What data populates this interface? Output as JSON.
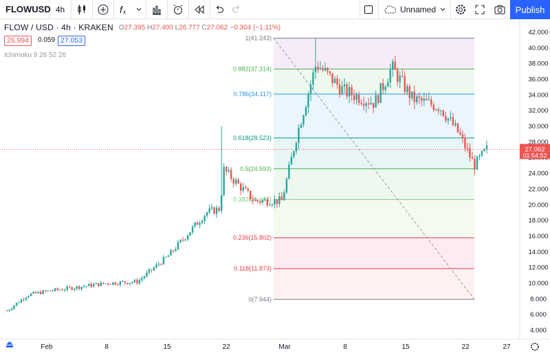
{
  "toolbar": {
    "symbol": "FLOWUSD",
    "interval": "4h",
    "layout_name": "Unnamed",
    "publish_label": "Publish",
    "icons": [
      "candles-icon",
      "add-compare-icon",
      "indicators-icon",
      "chevron-down-icon",
      "templates-icon",
      "alert-icon",
      "replay-icon",
      "undo-icon",
      "redo-icon",
      "square-icon",
      "cloud-icon",
      "settings-icon",
      "fullscreen-icon",
      "camera-icon"
    ]
  },
  "legend": {
    "title": "FLOW / USD · 4h · KRAKEN",
    "o_label": "O",
    "o": "27.395",
    "h_label": "H",
    "h": "27.400",
    "l_label": "L",
    "l": "26.777",
    "c_label": "C",
    "c": "27.062",
    "change": "−0.304 (−1.11%)",
    "sell_price": "26.994",
    "spread": "0.059",
    "buy_price": "27.053",
    "indicator": "Ichimoku 9 26 52 26"
  },
  "price_axis": {
    "ticks": [
      "42.000",
      "40.000",
      "38.000",
      "36.000",
      "34.000",
      "32.000",
      "30.000",
      "28.000",
      "26.000",
      "24.000",
      "22.000",
      "20.000",
      "18.000",
      "16.000",
      "14.000",
      "12.000",
      "10.000",
      "8.000",
      "6.000",
      "4.000"
    ],
    "last_price": "27.062",
    "countdown": "01:54:52",
    "last_price_color": "#ef5350"
  },
  "time_axis": {
    "labels": [
      "Feb",
      "8",
      "15",
      "22",
      "Mar",
      "8",
      "15",
      "22",
      "27"
    ]
  },
  "fib": {
    "levels": [
      {
        "label": "1(41.243)",
        "value": 41.243,
        "color": "#787b86"
      },
      {
        "label": "0.882(37.314)",
        "value": 37.314,
        "color": "#4caf50"
      },
      {
        "label": "0.786(34.117)",
        "value": 34.117,
        "color": "#2196f3"
      },
      {
        "label": "0.618(28.523)",
        "value": 28.523,
        "color": "#089981"
      },
      {
        "label": "0.5(24.593)",
        "value": 24.593,
        "color": "#4caf50"
      },
      {
        "label": "0.382(20.664)",
        "value": 20.664,
        "color": "#81c784"
      },
      {
        "label": "0.236(15.802)",
        "value": 15.802,
        "color": "#f23645"
      },
      {
        "label": "0.118(11.873)",
        "value": 11.873,
        "color": "#f23645"
      },
      {
        "label": "0(7.944)",
        "value": 7.944,
        "color": "#787b86"
      }
    ]
  },
  "chart_data": {
    "type": "candlestick",
    "title": "FLOW / USD · 4h · KRAKEN",
    "ylim": [
      3,
      43
    ],
    "series": [
      {
        "date": "Jan 28",
        "close": 6.5
      },
      {
        "date": "Feb 1",
        "close": 8.5
      },
      {
        "date": "Feb 4",
        "close": 9.0
      },
      {
        "date": "Feb 8",
        "close": 10.0
      },
      {
        "date": "Feb 12",
        "close": 10.2
      },
      {
        "date": "Feb 15",
        "close": 13.5
      },
      {
        "date": "Feb 17",
        "close": 16.0
      },
      {
        "date": "Feb 19",
        "close": 19.0
      },
      {
        "date": "Feb 22",
        "close": 19.5
      },
      {
        "date": "Feb 23",
        "close": 24.5
      },
      {
        "date": "Feb 26",
        "close": 20.5
      },
      {
        "date": "Mar 1",
        "close": 20.5
      },
      {
        "date": "Mar 3",
        "close": 29.0
      },
      {
        "date": "Mar 5",
        "close": 38.0
      },
      {
        "date": "Mar 8",
        "close": 34.5
      },
      {
        "date": "Mar 10",
        "close": 33.0
      },
      {
        "date": "Mar 13",
        "close": 37.5
      },
      {
        "date": "Mar 16",
        "close": 33.5
      },
      {
        "date": "Mar 19",
        "close": 32.5
      },
      {
        "date": "Mar 21",
        "close": 29.0
      },
      {
        "date": "Mar 23",
        "close": 25.0
      },
      {
        "date": "Mar 24",
        "close": 27.06
      }
    ]
  }
}
